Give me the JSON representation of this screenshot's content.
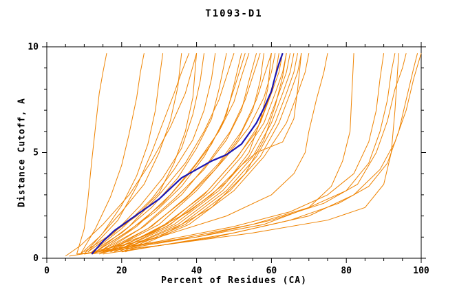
{
  "chart_data": {
    "type": "line",
    "title": "T1093-D1",
    "xlabel": "Percent of Residues (CA)",
    "ylabel": "Distance Cutoff, A",
    "xlim": [
      0,
      100
    ],
    "ylim": [
      0,
      10
    ],
    "x_major_ticks": [
      0,
      20,
      40,
      60,
      80,
      100
    ],
    "x_minor_step": 5,
    "y_major_ticks": [
      0,
      5,
      10
    ],
    "y_minor_step": 1,
    "grid": false,
    "legend": "none",
    "colors": {
      "ensemble": "#ef8300",
      "highlight": "#1a15b4",
      "axis": "#000000",
      "background": "#ffffff"
    },
    "highlight_series": {
      "name": "selected-model",
      "points": [
        [
          12,
          0.2
        ],
        [
          15,
          0.8
        ],
        [
          18,
          1.3
        ],
        [
          22,
          1.8
        ],
        [
          26,
          2.3
        ],
        [
          30,
          2.8
        ],
        [
          33,
          3.3
        ],
        [
          36,
          3.8
        ],
        [
          40,
          4.2
        ],
        [
          44,
          4.6
        ],
        [
          48,
          4.9
        ],
        [
          52,
          5.4
        ],
        [
          54,
          5.9
        ],
        [
          56,
          6.4
        ],
        [
          58,
          7.1
        ],
        [
          60,
          7.9
        ],
        [
          61,
          8.6
        ],
        [
          62,
          9.2
        ],
        [
          63,
          9.7
        ]
      ]
    },
    "ensemble_series": [
      [
        [
          8,
          0.2
        ],
        [
          10,
          1.4
        ],
        [
          11,
          2.8
        ],
        [
          12,
          4.6
        ],
        [
          13,
          6.2
        ],
        [
          14,
          7.8
        ],
        [
          15,
          8.8
        ],
        [
          16,
          9.7
        ]
      ],
      [
        [
          9,
          0.2
        ],
        [
          13,
          1.4
        ],
        [
          17,
          2.9
        ],
        [
          20,
          4.4
        ],
        [
          22,
          5.9
        ],
        [
          24,
          7.6
        ],
        [
          25,
          8.8
        ],
        [
          26,
          9.7
        ]
      ],
      [
        [
          10,
          0.2
        ],
        [
          15,
          1.2
        ],
        [
          20,
          2.5
        ],
        [
          24,
          3.9
        ],
        [
          27,
          5.4
        ],
        [
          29,
          7.0
        ],
        [
          30,
          8.4
        ],
        [
          31,
          9.7
        ]
      ],
      [
        [
          9,
          0.2
        ],
        [
          14,
          1.0
        ],
        [
          20,
          2.2
        ],
        [
          26,
          3.5
        ],
        [
          30,
          5.0
        ],
        [
          33,
          6.5
        ],
        [
          35,
          8.1
        ],
        [
          36,
          9.7
        ]
      ],
      [
        [
          10,
          0.3
        ],
        [
          16,
          1.0
        ],
        [
          24,
          2.0
        ],
        [
          30,
          3.1
        ],
        [
          34,
          4.5
        ],
        [
          37,
          6.0
        ],
        [
          39,
          7.6
        ],
        [
          40,
          9.7
        ]
      ],
      [
        [
          11,
          0.3
        ],
        [
          18,
          1.2
        ],
        [
          25,
          2.5
        ],
        [
          31,
          3.8
        ],
        [
          36,
          5.2
        ],
        [
          39,
          6.8
        ],
        [
          41,
          8.4
        ],
        [
          42,
          9.7
        ]
      ],
      [
        [
          12,
          0.3
        ],
        [
          20,
          1.4
        ],
        [
          28,
          2.8
        ],
        [
          34,
          4.2
        ],
        [
          39,
          5.6
        ],
        [
          42,
          7.0
        ],
        [
          44,
          8.5
        ],
        [
          45,
          9.7
        ]
      ],
      [
        [
          12,
          0.3
        ],
        [
          20,
          1.2
        ],
        [
          28,
          2.4
        ],
        [
          35,
          3.8
        ],
        [
          40,
          5.2
        ],
        [
          44,
          6.6
        ],
        [
          46,
          8.0
        ],
        [
          48,
          9.7
        ]
      ],
      [
        [
          13,
          0.3
        ],
        [
          22,
          1.5
        ],
        [
          30,
          3.0
        ],
        [
          37,
          4.5
        ],
        [
          42,
          6.0
        ],
        [
          46,
          7.5
        ],
        [
          48,
          8.6
        ],
        [
          50,
          9.7
        ]
      ],
      [
        [
          13,
          0.3
        ],
        [
          22,
          1.3
        ],
        [
          31,
          2.6
        ],
        [
          38,
          4.0
        ],
        [
          44,
          5.4
        ],
        [
          48,
          6.8
        ],
        [
          50,
          8.2
        ],
        [
          52,
          9.7
        ]
      ],
      [
        [
          14,
          0.3
        ],
        [
          24,
          1.5
        ],
        [
          33,
          3.0
        ],
        [
          40,
          4.5
        ],
        [
          46,
          6.0
        ],
        [
          50,
          7.4
        ],
        [
          52,
          8.6
        ],
        [
          54,
          9.7
        ]
      ],
      [
        [
          14,
          0.3
        ],
        [
          25,
          1.4
        ],
        [
          34,
          2.8
        ],
        [
          42,
          4.2
        ],
        [
          48,
          5.6
        ],
        [
          52,
          7.0
        ],
        [
          54,
          8.4
        ],
        [
          56,
          9.7
        ]
      ],
      [
        [
          15,
          0.3
        ],
        [
          26,
          1.5
        ],
        [
          36,
          3.0
        ],
        [
          43,
          4.5
        ],
        [
          49,
          6.0
        ],
        [
          53,
          7.5
        ],
        [
          55,
          8.6
        ],
        [
          57,
          9.7
        ]
      ],
      [
        [
          15,
          0.3
        ],
        [
          27,
          1.4
        ],
        [
          37,
          2.8
        ],
        [
          45,
          4.2
        ],
        [
          51,
          5.6
        ],
        [
          55,
          7.0
        ],
        [
          57,
          8.4
        ],
        [
          58,
          9.7
        ]
      ],
      [
        [
          16,
          0.3
        ],
        [
          28,
          1.5
        ],
        [
          38,
          3.0
        ],
        [
          46,
          4.5
        ],
        [
          52,
          6.0
        ],
        [
          56,
          7.5
        ],
        [
          58,
          8.6
        ],
        [
          60,
          9.7
        ]
      ],
      [
        [
          12,
          0.2
        ],
        [
          25,
          1.0
        ],
        [
          38,
          2.2
        ],
        [
          48,
          3.6
        ],
        [
          54,
          5.0
        ],
        [
          57,
          6.5
        ],
        [
          59,
          8.0
        ],
        [
          60,
          9.7
        ]
      ],
      [
        [
          16,
          0.3
        ],
        [
          30,
          1.6
        ],
        [
          40,
          3.2
        ],
        [
          48,
          4.8
        ],
        [
          54,
          6.2
        ],
        [
          58,
          7.6
        ],
        [
          60,
          8.8
        ],
        [
          61,
          9.7
        ]
      ],
      [
        [
          17,
          0.3
        ],
        [
          30,
          1.4
        ],
        [
          42,
          3.0
        ],
        [
          50,
          4.6
        ],
        [
          56,
          6.0
        ],
        [
          59,
          7.4
        ],
        [
          61,
          8.6
        ],
        [
          62,
          9.7
        ]
      ],
      [
        [
          17,
          0.3
        ],
        [
          32,
          1.6
        ],
        [
          43,
          3.2
        ],
        [
          51,
          4.8
        ],
        [
          57,
          6.4
        ],
        [
          60,
          7.8
        ],
        [
          62,
          8.8
        ],
        [
          63,
          9.7
        ]
      ],
      [
        [
          18,
          0.3
        ],
        [
          33,
          1.6
        ],
        [
          44,
          3.2
        ],
        [
          52,
          4.8
        ],
        [
          58,
          6.4
        ],
        [
          61,
          7.8
        ],
        [
          63,
          8.8
        ],
        [
          64,
          9.7
        ]
      ],
      [
        [
          14,
          0.2
        ],
        [
          30,
          1.0
        ],
        [
          44,
          2.4
        ],
        [
          53,
          4.0
        ],
        [
          58,
          5.6
        ],
        [
          61,
          7.2
        ],
        [
          63,
          8.6
        ],
        [
          64,
          9.7
        ]
      ],
      [
        [
          18,
          0.3
        ],
        [
          34,
          1.6
        ],
        [
          46,
          3.2
        ],
        [
          54,
          4.8
        ],
        [
          59,
          6.4
        ],
        [
          62,
          7.8
        ],
        [
          64,
          8.8
        ],
        [
          65,
          9.7
        ]
      ],
      [
        [
          19,
          0.3
        ],
        [
          35,
          1.6
        ],
        [
          47,
          3.2
        ],
        [
          55,
          4.8
        ],
        [
          60,
          6.4
        ],
        [
          63,
          7.8
        ],
        [
          65,
          8.8
        ],
        [
          66,
          9.7
        ]
      ],
      [
        [
          19,
          0.3
        ],
        [
          36,
          1.6
        ],
        [
          48,
          3.2
        ],
        [
          56,
          4.8
        ],
        [
          61,
          6.4
        ],
        [
          64,
          7.8
        ],
        [
          66,
          8.8
        ],
        [
          67,
          9.7
        ]
      ],
      [
        [
          20,
          0.3
        ],
        [
          37,
          1.6
        ],
        [
          49,
          3.2
        ],
        [
          57,
          4.8
        ],
        [
          62,
          6.4
        ],
        [
          65,
          7.8
        ],
        [
          67,
          8.8
        ],
        [
          68,
          9.7
        ]
      ],
      [
        [
          16,
          0.3
        ],
        [
          32,
          1.5
        ],
        [
          44,
          3.0
        ],
        [
          52,
          4.4
        ],
        [
          56,
          5.0
        ],
        [
          63,
          5.5
        ],
        [
          66,
          6.6
        ],
        [
          67,
          8.0
        ],
        [
          68,
          9.7
        ]
      ],
      [
        [
          21,
          0.3
        ],
        [
          38,
          1.6
        ],
        [
          50,
          3.2
        ],
        [
          58,
          4.8
        ],
        [
          64,
          6.4
        ],
        [
          67,
          7.8
        ],
        [
          69,
          8.8
        ],
        [
          70,
          9.7
        ]
      ],
      [
        [
          12,
          0.3
        ],
        [
          30,
          1.0
        ],
        [
          48,
          2.0
        ],
        [
          60,
          3.0
        ],
        [
          66,
          4.0
        ],
        [
          69,
          5.0
        ],
        [
          70,
          6.0
        ],
        [
          72,
          7.5
        ],
        [
          74,
          8.8
        ],
        [
          75,
          9.7
        ]
      ],
      [
        [
          10,
          0.2
        ],
        [
          30,
          0.8
        ],
        [
          50,
          1.5
        ],
        [
          65,
          2.2
        ],
        [
          75,
          3.0
        ],
        [
          82,
          4.0
        ],
        [
          86,
          5.5
        ],
        [
          88,
          7.0
        ],
        [
          89,
          8.5
        ],
        [
          90,
          9.7
        ]
      ],
      [
        [
          10,
          0.2
        ],
        [
          35,
          0.9
        ],
        [
          55,
          1.6
        ],
        [
          70,
          2.4
        ],
        [
          80,
          3.2
        ],
        [
          86,
          4.5
        ],
        [
          89,
          6.0
        ],
        [
          91,
          7.5
        ],
        [
          92,
          8.8
        ],
        [
          93,
          9.7
        ]
      ],
      [
        [
          12,
          0.2
        ],
        [
          40,
          1.0
        ],
        [
          60,
          1.8
        ],
        [
          74,
          2.6
        ],
        [
          83,
          3.5
        ],
        [
          88,
          5.0
        ],
        [
          91,
          6.5
        ],
        [
          93,
          8.0
        ],
        [
          95,
          9.0
        ],
        [
          96,
          9.7
        ]
      ],
      [
        [
          15,
          0.2
        ],
        [
          45,
          1.0
        ],
        [
          65,
          1.8
        ],
        [
          78,
          2.6
        ],
        [
          86,
          3.4
        ],
        [
          91,
          4.5
        ],
        [
          94,
          6.0
        ],
        [
          96,
          7.5
        ],
        [
          98,
          9.0
        ],
        [
          99,
          9.7
        ]
      ],
      [
        [
          20,
          0.3
        ],
        [
          50,
          1.2
        ],
        [
          70,
          2.0
        ],
        [
          82,
          3.0
        ],
        [
          89,
          4.2
        ],
        [
          93,
          5.5
        ],
        [
          96,
          7.0
        ],
        [
          98,
          8.5
        ],
        [
          100,
          9.7
        ]
      ],
      [
        [
          8,
          0.2
        ],
        [
          30,
          0.6
        ],
        [
          55,
          1.2
        ],
        [
          75,
          1.8
        ],
        [
          85,
          2.4
        ],
        [
          90,
          3.5
        ],
        [
          92,
          5.0
        ],
        [
          93,
          7.0
        ],
        [
          94,
          9.7
        ]
      ],
      [
        [
          11,
          0.3
        ],
        [
          19,
          1.8
        ],
        [
          24,
          3.4
        ],
        [
          28,
          5.0
        ],
        [
          31,
          6.4
        ],
        [
          34,
          7.8
        ],
        [
          36,
          8.8
        ],
        [
          38,
          9.7
        ]
      ],
      [
        [
          13,
          0.3
        ],
        [
          21,
          1.2
        ],
        [
          29,
          2.2
        ],
        [
          36,
          3.4
        ],
        [
          42,
          4.8
        ],
        [
          47,
          6.4
        ],
        [
          50,
          8.0
        ],
        [
          53,
          9.7
        ]
      ],
      [
        [
          5,
          0.1
        ],
        [
          9,
          0.6
        ],
        [
          15,
          1.6
        ],
        [
          22,
          3.0
        ],
        [
          28,
          4.6
        ],
        [
          33,
          6.2
        ],
        [
          37,
          7.8
        ],
        [
          40,
          9.7
        ]
      ],
      [
        [
          6,
          0.1
        ],
        [
          20,
          0.5
        ],
        [
          40,
          1.0
        ],
        [
          58,
          1.6
        ],
        [
          70,
          2.4
        ],
        [
          76,
          3.4
        ],
        [
          79,
          4.6
        ],
        [
          81,
          6.0
        ],
        [
          82,
          9.7
        ]
      ]
    ]
  }
}
